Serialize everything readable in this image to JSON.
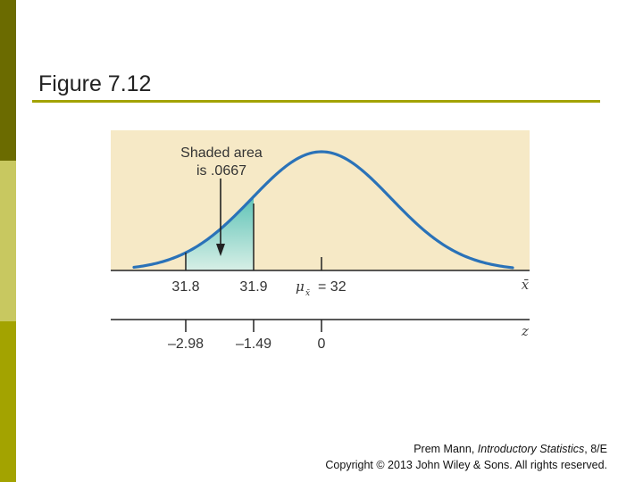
{
  "slide": {
    "title": "Figure 7.12",
    "accent_colors": {
      "dark": "#6b6b00",
      "light": "#c8c860",
      "mid": "#a3a300"
    }
  },
  "figure": {
    "background": "#f6e9c6",
    "curve_color": "#2a72b8",
    "shade_color": "#5fc3b7",
    "annotation_line1": "Shaded area",
    "annotation_line2": "is .0667",
    "x_axis": {
      "label": "x̄",
      "ticks": [
        "31.8",
        "31.9"
      ],
      "mean_symbol": "μ",
      "mean_subscript": "x̄",
      "mean_value": "= 32"
    },
    "z_axis": {
      "label": "z",
      "ticks": [
        "–2.98",
        "–1.49",
        "0"
      ]
    }
  },
  "credits": {
    "author": "Prem Mann, ",
    "book": "Introductory Statistics",
    "edition": ", 8/E",
    "copyright": "Copyright © 2013 John Wiley & Sons. All rights reserved."
  }
}
